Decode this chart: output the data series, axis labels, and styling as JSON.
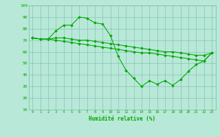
{
  "x_labels": [
    0,
    1,
    2,
    3,
    4,
    5,
    6,
    7,
    8,
    9,
    10,
    11,
    12,
    13,
    14,
    15,
    16,
    17,
    18,
    19,
    20,
    21,
    22,
    23
  ],
  "line1": [
    72,
    71,
    71,
    78,
    83,
    83,
    90,
    89,
    85,
    84,
    74,
    56,
    44,
    37,
    30,
    35,
    32,
    35,
    31,
    36,
    43,
    49,
    52,
    59
  ],
  "line2": [
    72,
    71,
    71,
    72,
    72,
    71,
    70,
    70,
    69,
    68,
    67,
    66,
    65,
    64,
    63,
    62,
    61,
    60,
    60,
    59,
    58,
    57,
    57,
    59
  ],
  "line3": [
    72,
    71,
    71,
    70,
    69,
    68,
    67,
    66,
    65,
    64,
    63,
    62,
    61,
    60,
    59,
    59,
    58,
    57,
    56,
    55,
    54,
    53,
    52,
    59
  ],
  "line_color": "#00aa00",
  "bg_color": "#b8e8d8",
  "grid_color": "#7abba8",
  "xlabel": "Humidité relative (%)",
  "ylim": [
    10,
    100
  ],
  "xlim_min": -0.5,
  "xlim_max": 23.5,
  "yticks": [
    10,
    20,
    30,
    40,
    50,
    60,
    70,
    80,
    90,
    100
  ]
}
